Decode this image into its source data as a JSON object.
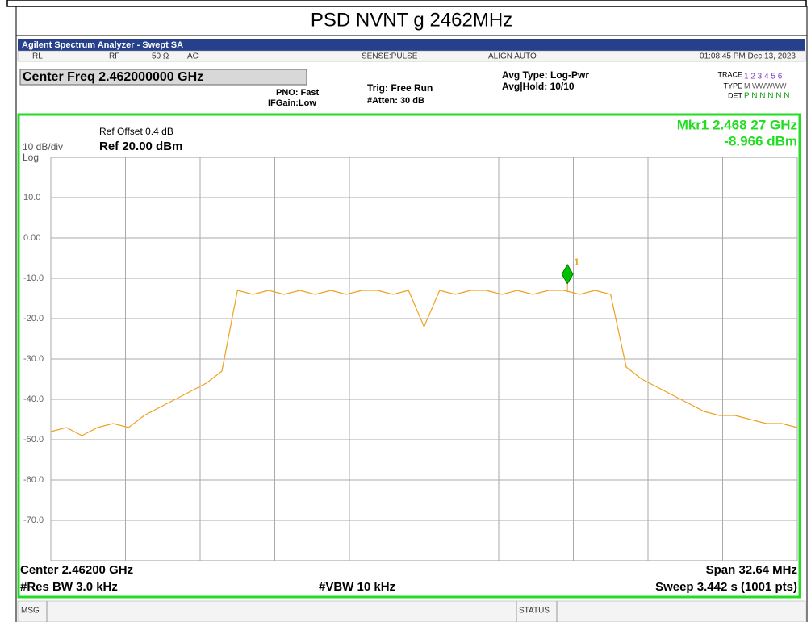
{
  "header": {
    "title": "PSD NVNT g 2462MHz"
  },
  "window": {
    "title": "Agilent Spectrum Analyzer - Swept SA"
  },
  "status_row": {
    "rl": "RL",
    "rf": "RF",
    "impedance": "50 Ω",
    "coupling": "AC",
    "sense": "SENSE:PULSE",
    "align": "ALIGN AUTO",
    "time": "01:08:45 PM Dec 13, 2023"
  },
  "info": {
    "center_freq": "Center Freq 2.462000000 GHz",
    "pno": "PNO: Fast",
    "ifgain": "IFGain:Low",
    "trig": "Trig: Free Run",
    "atten": "#Atten: 30 dB",
    "avg_type": "Avg Type: Log-Pwr",
    "avg_hold": "Avg|Hold: 10/10",
    "trace_label": "TRACE",
    "trace_value": "1 2 3 4 5 6",
    "type_label": "TYPE",
    "type_value": "M WWWWW",
    "det_label": "DET",
    "det_value": "P N N N N N"
  },
  "plot_texts": {
    "ref_offset": "Ref Offset 0.4 dB",
    "scale": "10 dB/div",
    "ref_level": "Ref 20.00 dBm",
    "log": "Log",
    "marker_freq": "Mkr1 2.468 27 GHz",
    "marker_level": "-8.966 dBm",
    "center": "Center 2.46200 GHz",
    "res_bw": "#Res BW 3.0 kHz",
    "vbw": "#VBW 10 kHz",
    "span": "Span 32.64 MHz",
    "sweep": "Sweep  3.442 s (1001 pts)"
  },
  "footer": {
    "msg": "MSG",
    "status": "STATUS"
  },
  "chart_data": {
    "type": "line",
    "color": "#f0a020",
    "xlim": [
      2.44568,
      2.47832
    ],
    "ylim": [
      -80,
      20
    ],
    "yticks": [
      {
        "value": 10,
        "label": "10.0"
      },
      {
        "value": 0,
        "label": "0.00"
      },
      {
        "value": -10,
        "label": "-10.0"
      },
      {
        "value": -20,
        "label": "-20.0"
      },
      {
        "value": -30,
        "label": "-30.0"
      },
      {
        "value": -40,
        "label": "-40.0"
      },
      {
        "value": -50,
        "label": "-50.0"
      },
      {
        "value": -60,
        "label": "-60.0"
      },
      {
        "value": -70,
        "label": "-70.0"
      }
    ],
    "grid": true,
    "x": [
      2.44568,
      2.44636,
      2.44704,
      2.44772,
      2.4484,
      2.44908,
      2.44976,
      2.45044,
      2.45112,
      2.4518,
      2.45248,
      2.45316,
      2.45384,
      2.45452,
      2.4552,
      2.45588,
      2.45656,
      2.45724,
      2.45792,
      2.4586,
      2.45928,
      2.45996,
      2.46064,
      2.46132,
      2.462,
      2.46268,
      2.46336,
      2.46404,
      2.46472,
      2.4654,
      2.46608,
      2.46676,
      2.46744,
      2.46812,
      2.4688,
      2.46948,
      2.47016,
      2.47084,
      2.47152,
      2.4722,
      2.47288,
      2.47356,
      2.47424,
      2.47492,
      2.4756,
      2.47628,
      2.47696,
      2.47764,
      2.47832
    ],
    "values": [
      -48,
      -47,
      -49,
      -47,
      -46,
      -47,
      -44,
      -42,
      -40,
      -38,
      -36,
      -33,
      -13,
      -14,
      -13,
      -14,
      -13,
      -14,
      -13,
      -14,
      -13,
      -13,
      -14,
      -13,
      -22,
      -13,
      -14,
      -13,
      -13,
      -14,
      -13,
      -14,
      -13,
      -13,
      -14,
      -13,
      -14,
      -32,
      -35,
      -37,
      -39,
      -41,
      -43,
      -44,
      -44,
      -45,
      -46,
      -46,
      -47
    ],
    "marker": {
      "x": 2.46827,
      "y": -8.966,
      "label": "1",
      "color": "#00c000"
    }
  }
}
